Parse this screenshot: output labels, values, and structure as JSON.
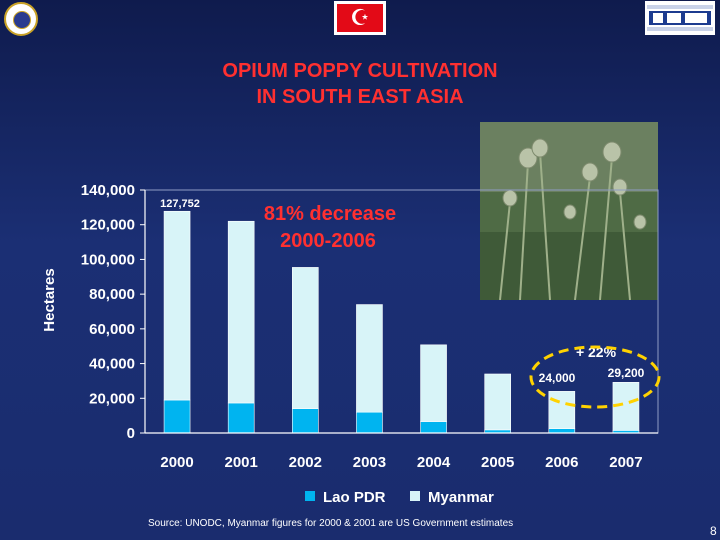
{
  "header": {
    "left_logo_icon": "police-emblem-icon",
    "flag_icon": "turkish-flag-icon",
    "flag_glyph": "☪",
    "right_logo_icon": "kom-logo-icon"
  },
  "chart_data": {
    "type": "bar",
    "stacked": true,
    "title_lines": [
      "OPIUM POPPY CULTIVATION",
      "IN SOUTH EAST ASIA"
    ],
    "ylabel": "Hectares",
    "xlabel": "",
    "categories": [
      "2000",
      "2001",
      "2002",
      "2003",
      "2004",
      "2005",
      "2006",
      "2007"
    ],
    "series": [
      {
        "name": "Lao PDR",
        "color": "#00b4f0",
        "values": [
          19000,
          17300,
          14000,
          12000,
          6600,
          1800,
          2500,
          1500
        ]
      },
      {
        "name": "Myanmar",
        "color": "#d8f4f8",
        "values": [
          108752,
          104700,
          81400,
          62000,
          44200,
          32200,
          21500,
          27700
        ]
      }
    ],
    "ylim": [
      0,
      140000
    ],
    "yticks": [
      "0",
      "20,000",
      "40,000",
      "60,000",
      "80,000",
      "100,000",
      "120,000",
      "140,000"
    ],
    "ytick_values": [
      0,
      20000,
      40000,
      60000,
      80000,
      100000,
      120000,
      140000
    ],
    "grid": false,
    "legend_position": "bottom",
    "annotations": {
      "first_bar_label": "127,752",
      "decrease_lines": [
        "81% decrease",
        "2000-2006"
      ],
      "increase_label": "+ 22%",
      "bar_2006_label": "24,000",
      "bar_2007_label": "29,200"
    },
    "colors": {
      "plot_background": "#1a2c6e",
      "axis_text": "#ffffff",
      "decrease_text": "#ff3030",
      "highlight_ellipse": "#ffd200"
    }
  },
  "footer": {
    "source": "Source: UNODC, Myanmar figures for 2000 & 2001 are US Government estimates",
    "corner_number": "8"
  }
}
